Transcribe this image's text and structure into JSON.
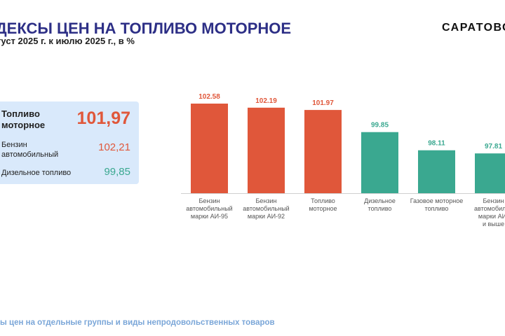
{
  "header": {
    "title": "ДЕКСЫ ЦЕН НА ТОПЛИВО МОТОРНОЕ",
    "subtitle": "густ 2025 г. к июлю 2025 г., в %",
    "brand": "САРАТОВС"
  },
  "panel": {
    "main": {
      "label_line1": "Топливо",
      "label_line2": "моторное",
      "value": "101,97"
    },
    "petrol": {
      "label_line1": "Бензин",
      "label_line2": "автомобильный",
      "value": "102,21"
    },
    "diesel": {
      "label": "Дизельное топливо",
      "value": "99,85"
    }
  },
  "footer": {
    "text": "ы цен на отдельные группы и виды непродовольственных товаров"
  },
  "colors": {
    "accent_red": "#e0573a",
    "accent_green": "#3aa890",
    "title_blue": "#2d2f86"
  },
  "chart_data": {
    "type": "bar",
    "categories": [
      [
        "Бензин",
        "автомобильный",
        "марки АИ-95"
      ],
      [
        "Бензин",
        "автомобильный",
        "марки АИ-92"
      ],
      [
        "Топливо",
        "моторное"
      ],
      [
        "Дизельное",
        "топливо"
      ],
      [
        "Газовое моторное",
        "топливо"
      ],
      [
        "Бензин",
        "автомобильн",
        "марки АИ-",
        "и выше"
      ]
    ],
    "values": [
      102.58,
      102.19,
      101.97,
      99.85,
      98.11,
      97.81
    ],
    "value_labels": [
      "102.58",
      "102.19",
      "101.97",
      "99.85",
      "98.11",
      "97.81"
    ],
    "bar_colors": [
      "#e0573a",
      "#e0573a",
      "#e0573a",
      "#3aa890",
      "#3aa890",
      "#3aa890"
    ],
    "ylim": [
      94,
      103
    ],
    "grid": false
  }
}
